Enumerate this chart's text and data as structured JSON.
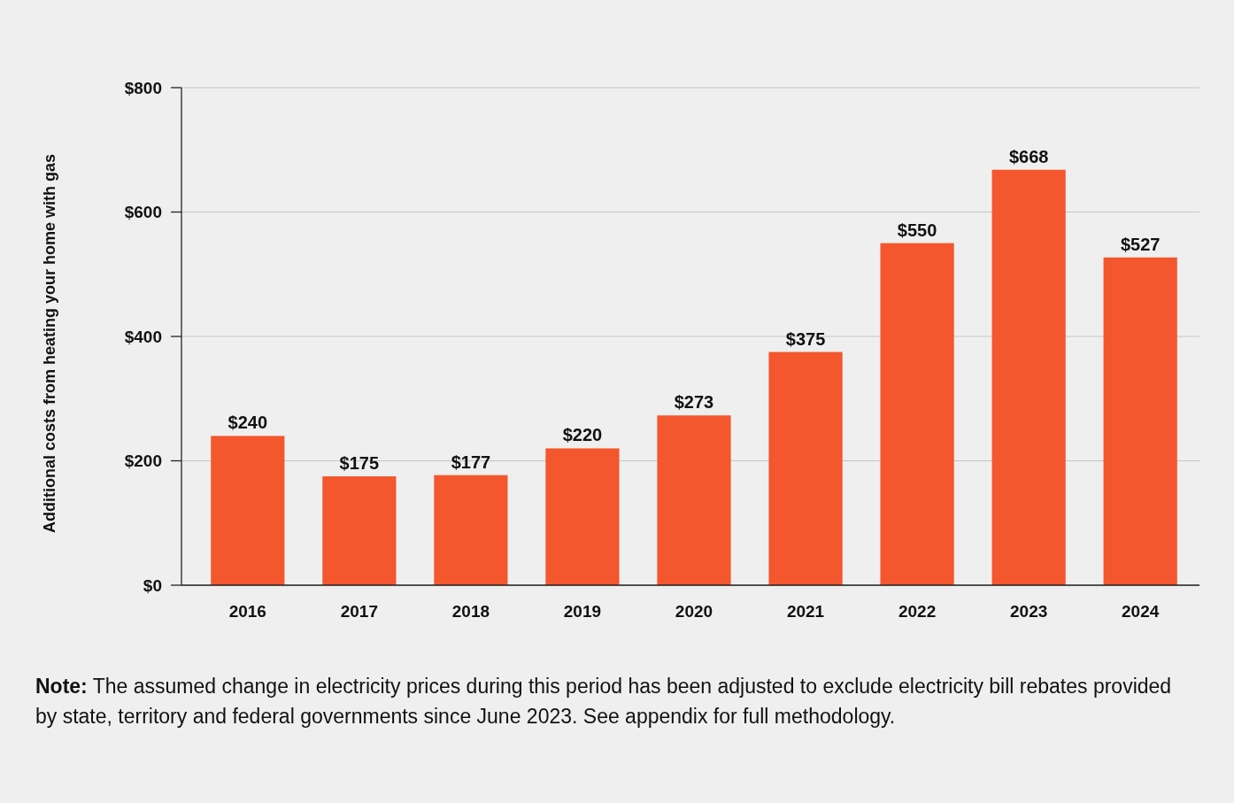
{
  "chart_data": {
    "type": "bar",
    "ylabel": "Additional costs from heating your home with gas",
    "categories": [
      "2016",
      "2017",
      "2018",
      "2019",
      "2020",
      "2021",
      "2022",
      "2023",
      "2024"
    ],
    "values": [
      240,
      175,
      177,
      220,
      273,
      375,
      550,
      668,
      527
    ],
    "color": "#f4562d",
    "ylim": [
      0,
      800
    ],
    "yticks": [
      {
        "value": 0,
        "label": "$0"
      },
      {
        "value": 200,
        "label": "$200"
      },
      {
        "value": 400,
        "label": "$400"
      },
      {
        "value": 600,
        "label": "$600"
      },
      {
        "value": 800,
        "label": "$800"
      }
    ],
    "grid": "y",
    "value_labels": [
      "$240",
      "$175",
      "$177",
      "$220",
      "$273",
      "$375",
      "$550",
      "$668",
      "$527"
    ],
    "annotations": [
      "Note: The assumed change in electricity prices during this period has been adjusted to exclude electricity bill rebates provided by state, territory and federal governments since June 2023. See appendix for full methodology."
    ]
  }
}
